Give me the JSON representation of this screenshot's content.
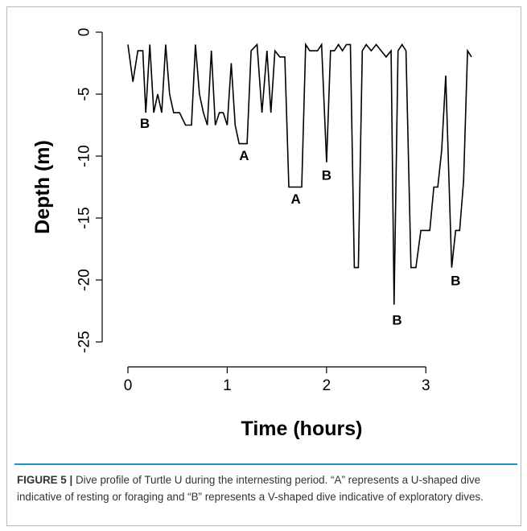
{
  "chart_data": {
    "type": "line",
    "xlabel": "Time (hours)",
    "ylabel": "Depth (m)",
    "xlim": [
      0,
      3.5
    ],
    "ylim": [
      -25,
      0
    ],
    "xticks": [
      0,
      1,
      2,
      3
    ],
    "yticks": [
      0,
      -5,
      -10,
      -15,
      -20,
      -25
    ],
    "series": [
      {
        "x": [
          0.0,
          0.05,
          0.1,
          0.15,
          0.18,
          0.22,
          0.26,
          0.3,
          0.34,
          0.38,
          0.42,
          0.46,
          0.52,
          0.58,
          0.64,
          0.68,
          0.72,
          0.76,
          0.8,
          0.84,
          0.88,
          0.92,
          0.96,
          1.0,
          1.04,
          1.08,
          1.12,
          1.2,
          1.24,
          1.3,
          1.35,
          1.4,
          1.44,
          1.48,
          1.53,
          1.58,
          1.62,
          1.66,
          1.7,
          1.75,
          1.79,
          1.83,
          1.87,
          1.91,
          1.95,
          2.0,
          2.04,
          2.08,
          2.12,
          2.16,
          2.2,
          2.24,
          2.28,
          2.32,
          2.36,
          2.4,
          2.45,
          2.5,
          2.55,
          2.6,
          2.65,
          2.68,
          2.72,
          2.76,
          2.8,
          2.85,
          2.9,
          2.95,
          3.0,
          3.04,
          3.08,
          3.12,
          3.16,
          3.2,
          3.26,
          3.3,
          3.34,
          3.38,
          3.42,
          3.46
        ],
        "y": [
          -1,
          -4,
          -1.5,
          -1.5,
          -6.5,
          -1,
          -6.5,
          -5,
          -6.5,
          -1,
          -5,
          -6.5,
          -6.5,
          -7.5,
          -7.5,
          -1,
          -5,
          -6.5,
          -7.5,
          -1.5,
          -7.5,
          -6.5,
          -6.5,
          -7.5,
          -2.5,
          -7.5,
          -9,
          -9,
          -1.5,
          -1,
          -6.5,
          -1.5,
          -6.5,
          -1.5,
          -2,
          -2,
          -12.5,
          -12.5,
          -12.5,
          -12.5,
          -1,
          -1.5,
          -1.5,
          -1.5,
          -1,
          -10.5,
          -1.5,
          -1.5,
          -1,
          -1.5,
          -1,
          -1,
          -19,
          -19,
          -1.5,
          -1,
          -1.5,
          -1,
          -1.5,
          -2,
          -1.5,
          -22,
          -1.5,
          -1,
          -1.5,
          -19,
          -19,
          -16,
          -16,
          -16,
          -12.5,
          -12.5,
          -9.5,
          -3.5,
          -19,
          -16,
          -16,
          -12,
          -1.5,
          -2
        ]
      }
    ],
    "annotations": [
      {
        "text": "B",
        "x": 0.17,
        "y": -7.2
      },
      {
        "text": "A",
        "x": 1.17,
        "y": -9.8
      },
      {
        "text": "A",
        "x": 1.69,
        "y": -13.3
      },
      {
        "text": "B",
        "x": 2.0,
        "y": -11.4
      },
      {
        "text": "B",
        "x": 2.71,
        "y": -23.1
      },
      {
        "text": "B",
        "x": 3.3,
        "y": -19.9
      }
    ]
  },
  "caption": {
    "label": "FIGURE 5 |",
    "text": "Dive profile of Turtle U during the internesting period. “A” represents a U-shaped dive indicative of resting or foraging and “B” represents a V-shaped dive indicative of exploratory dives."
  },
  "colors": {
    "line": "#000000",
    "frame_border": "#b9b9b9",
    "caption_rule": "#1f93c8",
    "caption_text": "#333333"
  }
}
